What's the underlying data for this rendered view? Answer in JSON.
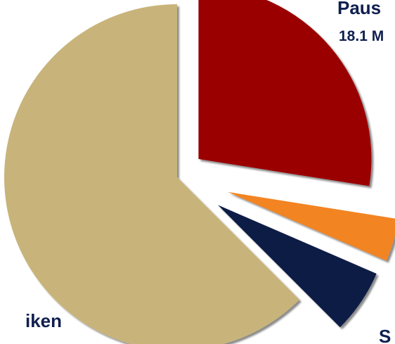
{
  "chart_data": {
    "type": "pie",
    "style": "exploded, with drop shadow",
    "slices": [
      {
        "key": "pause",
        "value": 27.5,
        "color": "#9a0000",
        "label": "Paus",
        "sublabel": "18.1 M"
      },
      {
        "key": "orange",
        "value": 4.0,
        "color": "#f28424",
        "label": "",
        "sublabel": ""
      },
      {
        "key": "navy",
        "value": 6.0,
        "color": "#0b1a45",
        "label": "S",
        "sublabel": ""
      },
      {
        "key": "tan",
        "value": 62.5,
        "color": "#c8b47a",
        "label": "iken",
        "sublabel": ""
      }
    ]
  }
}
